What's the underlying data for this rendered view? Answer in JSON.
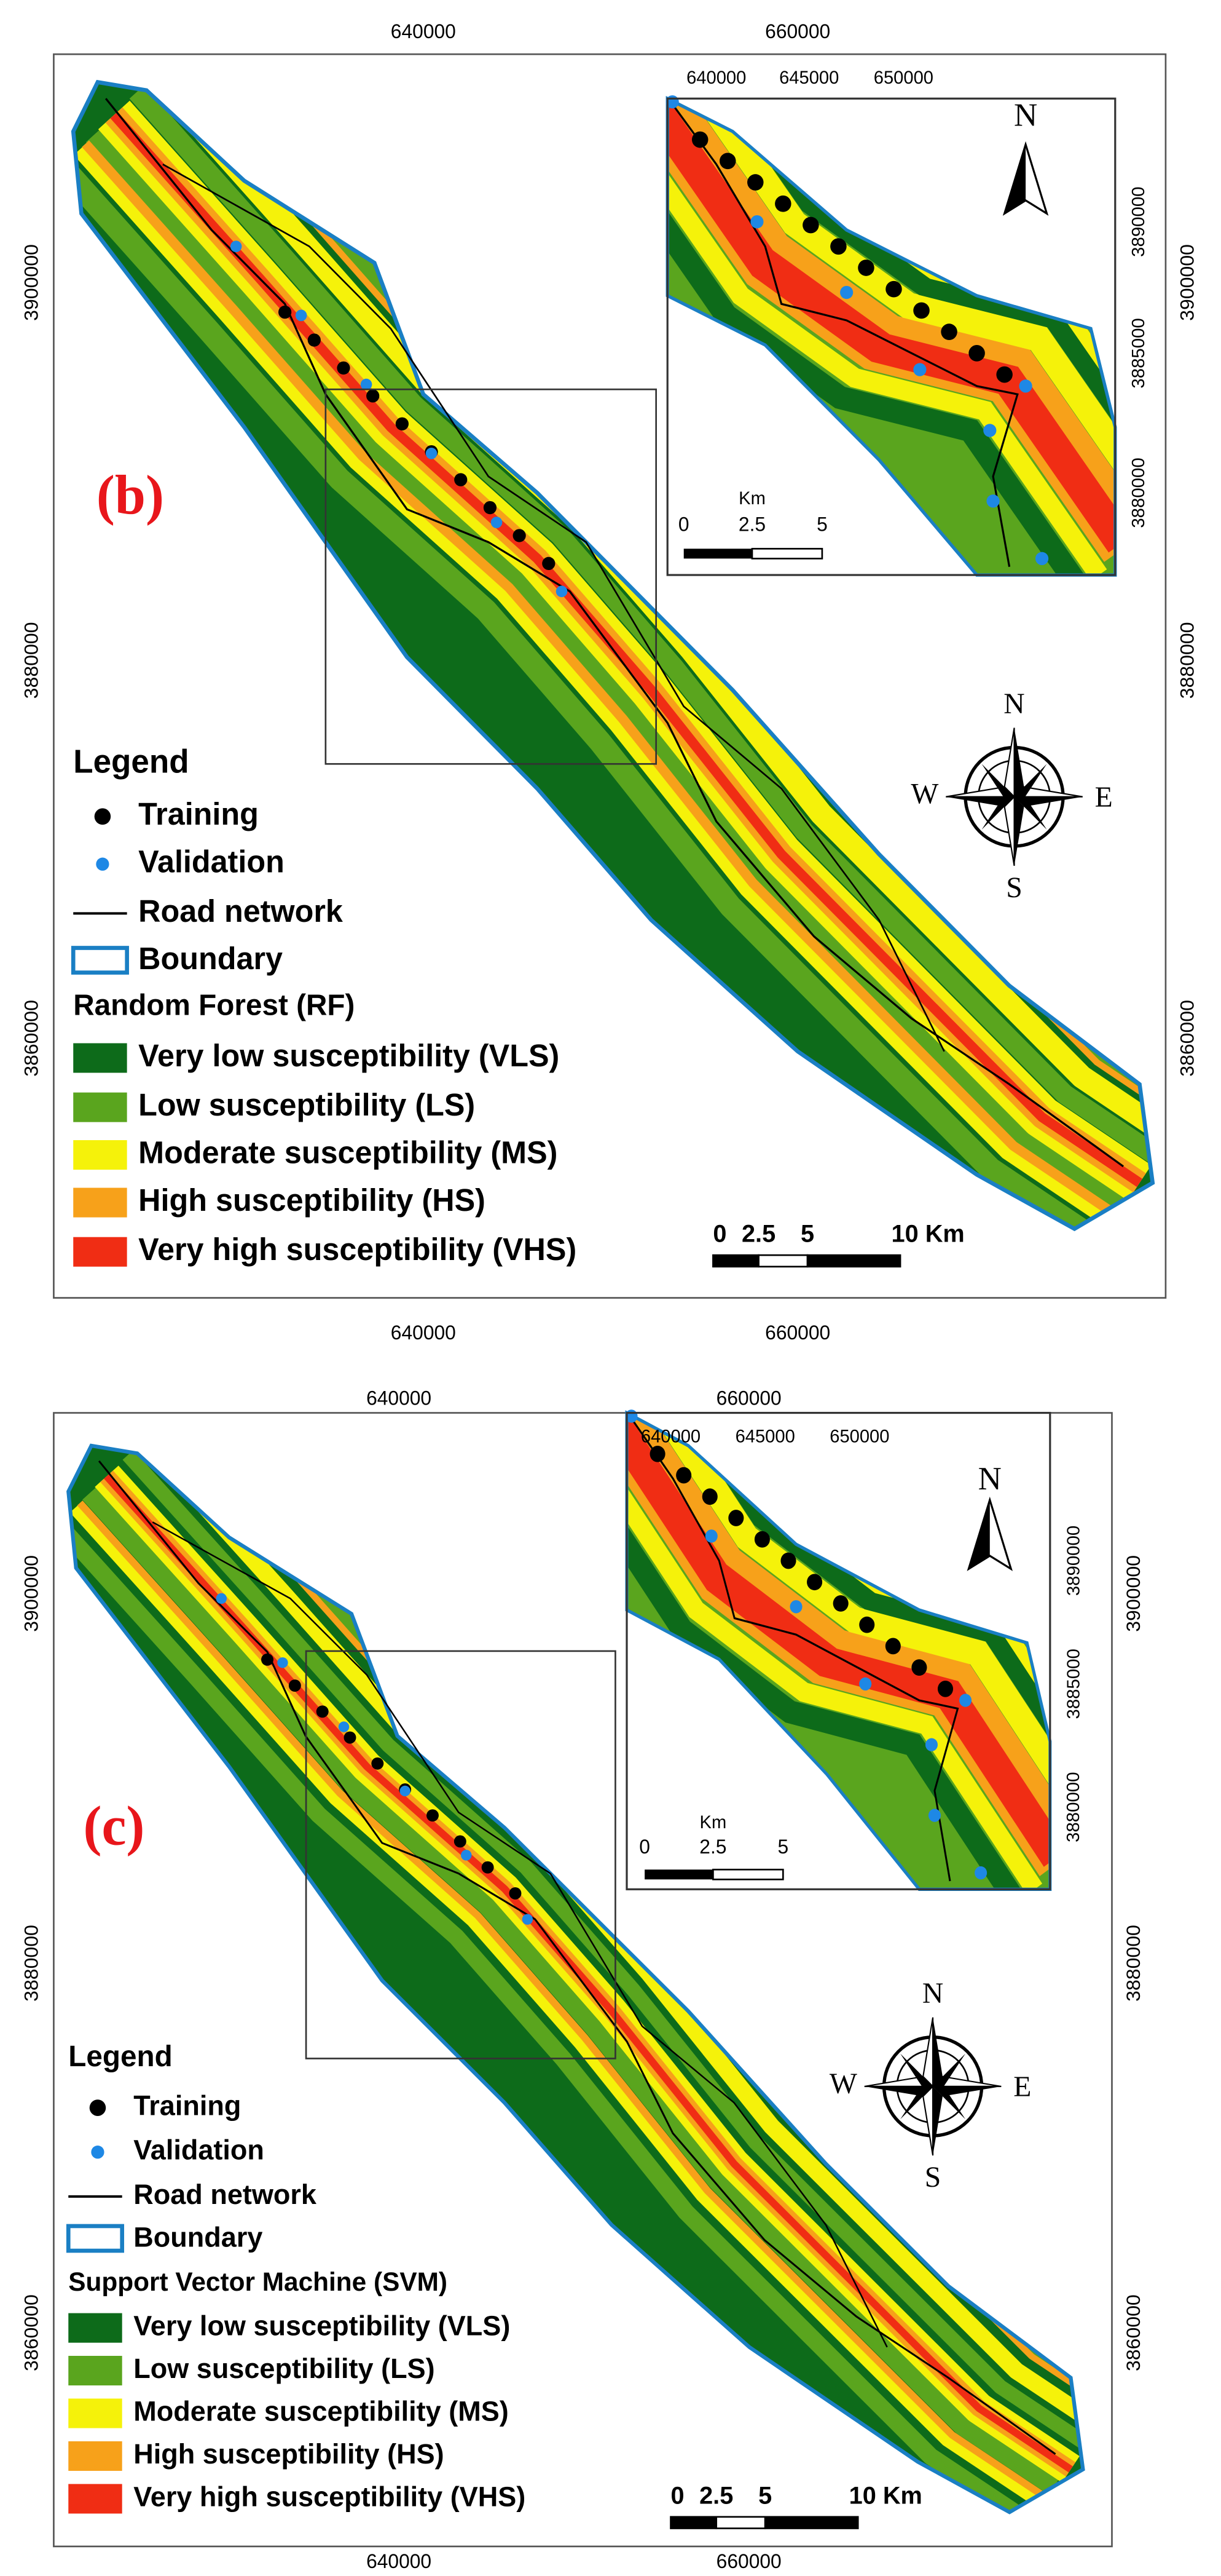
{
  "panels": [
    {
      "label": "(b)",
      "top_ticks": [
        "640000",
        "660000"
      ],
      "bottom_ticks": [
        "640000",
        "660000"
      ],
      "left_ticks": [
        "3900000",
        "3880000",
        "3860000"
      ],
      "right_ticks": [
        "3900000",
        "3880000",
        "3860000"
      ],
      "inset": {
        "top_ticks": [
          "640000",
          "645000",
          "650000"
        ],
        "right_ticks": [
          "3890000",
          "3885000",
          "3880000"
        ],
        "scale_unit": "Km",
        "scale_labels": [
          "0",
          "2.5",
          "5"
        ],
        "north": "N"
      },
      "legend": {
        "title": "Legend",
        "items": [
          "Training",
          "Validation",
          "Road network",
          "Boundary"
        ],
        "model": "Random Forest (RF)",
        "classes": [
          "Very low susceptibility (VLS)",
          "Low susceptibility (LS)",
          "Moderate susceptibility (MS)",
          "High susceptibility (HS)",
          "Very high susceptibility (VHS)"
        ]
      },
      "scale_labels": [
        "0",
        "2.5",
        "5",
        "10 Km"
      ],
      "compass": {
        "n": "N",
        "s": "S",
        "e": "E",
        "w": "W"
      }
    },
    {
      "label": "(c)",
      "top_ticks": [
        "640000",
        "660000"
      ],
      "bottom_ticks": [
        "640000",
        "660000"
      ],
      "left_ticks": [
        "3900000",
        "3880000",
        "3860000"
      ],
      "right_ticks": [
        "3900000",
        "3880000",
        "3860000"
      ],
      "inset": {
        "top_ticks": [
          "640000",
          "645000",
          "650000"
        ],
        "right_ticks": [
          "3890000",
          "3885000",
          "3880000"
        ],
        "scale_unit": "Km",
        "scale_labels": [
          "0",
          "2.5",
          "5"
        ],
        "north": "N"
      },
      "legend": {
        "title": "Legend",
        "items": [
          "Training",
          "Validation",
          "Road network",
          "Boundary"
        ],
        "model": "Support Vector Machine (SVM)",
        "classes": [
          "Very low susceptibility (VLS)",
          "Low susceptibility (LS)",
          "Moderate susceptibility (MS)",
          "High susceptibility (HS)",
          "Very high susceptibility (VHS)"
        ]
      },
      "scale_labels": [
        "0",
        "2.5",
        "5",
        "10 Km"
      ],
      "compass": {
        "n": "N",
        "s": "S",
        "e": "E",
        "w": "W"
      }
    }
  ]
}
